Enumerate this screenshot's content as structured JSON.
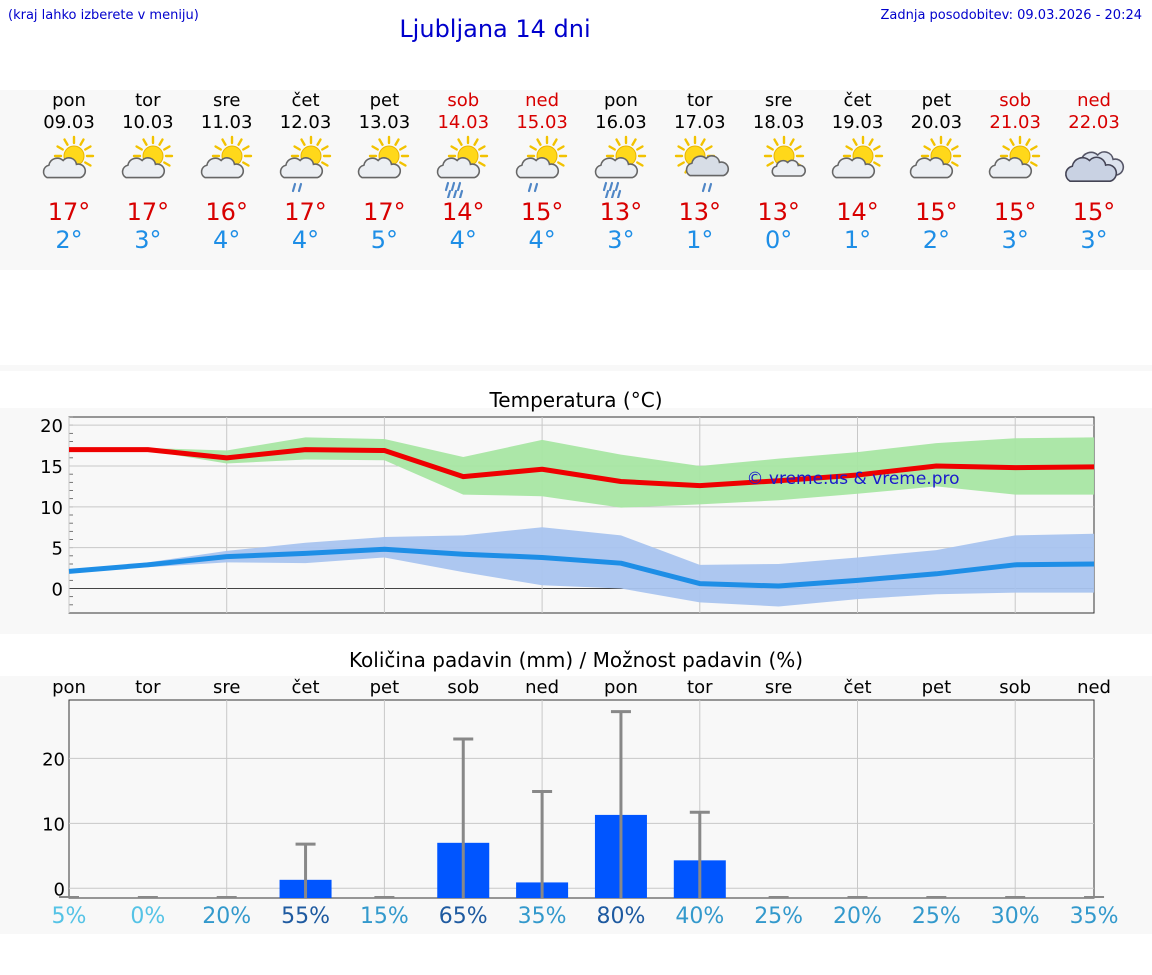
{
  "header": {
    "hint": "(kraj lahko izberete v meniju)",
    "title": "Ljubljana 14 dni",
    "updated": "Zadnja posodobitev: 09.03.2026 - 20:24"
  },
  "days": [
    {
      "name": "pon",
      "date": "09.03",
      "max": "17°",
      "min": "2°",
      "icon": "sun-cloud-icon",
      "weekend": false
    },
    {
      "name": "tor",
      "date": "10.03",
      "max": "17°",
      "min": "3°",
      "icon": "sun-cloud-icon",
      "weekend": false
    },
    {
      "name": "sre",
      "date": "11.03",
      "max": "16°",
      "min": "4°",
      "icon": "sun-cloud-icon",
      "weekend": false
    },
    {
      "name": "čet",
      "date": "12.03",
      "max": "17°",
      "min": "4°",
      "icon": "sun-cloud-drizzle-icon",
      "weekend": false
    },
    {
      "name": "pet",
      "date": "13.03",
      "max": "17°",
      "min": "5°",
      "icon": "sun-cloud-icon",
      "weekend": false
    },
    {
      "name": "sob",
      "date": "14.03",
      "max": "14°",
      "min": "4°",
      "icon": "sun-cloud-rain-icon",
      "weekend": true
    },
    {
      "name": "ned",
      "date": "15.03",
      "max": "15°",
      "min": "4°",
      "icon": "sun-cloud-drizzle-icon",
      "weekend": true
    },
    {
      "name": "pon",
      "date": "16.03",
      "max": "13°",
      "min": "3°",
      "icon": "sun-cloud-rain-icon",
      "weekend": false
    },
    {
      "name": "tor",
      "date": "17.03",
      "max": "13°",
      "min": "1°",
      "icon": "sun-grey-cloud-drizzle-icon",
      "weekend": false
    },
    {
      "name": "sre",
      "date": "18.03",
      "max": "13°",
      "min": "0°",
      "icon": "sun-small-cloud-icon",
      "weekend": false
    },
    {
      "name": "čet",
      "date": "19.03",
      "max": "14°",
      "min": "1°",
      "icon": "sun-cloud-icon",
      "weekend": false
    },
    {
      "name": "pet",
      "date": "20.03",
      "max": "15°",
      "min": "2°",
      "icon": "sun-cloud-icon",
      "weekend": false
    },
    {
      "name": "sob",
      "date": "21.03",
      "max": "15°",
      "min": "3°",
      "icon": "sun-cloud-icon",
      "weekend": true
    },
    {
      "name": "ned",
      "date": "22.03",
      "max": "15°",
      "min": "3°",
      "icon": "cloudy-icon",
      "weekend": true
    }
  ],
  "colors": {
    "max_line": "#ee0000",
    "max_band": "#a8e6a3",
    "min_line": "#1e8ee6",
    "min_band": "#a9c4ef",
    "bar": "#0055ff",
    "whisker": "#888888",
    "weekend": "#d80000"
  },
  "chart_data": [
    {
      "type": "line",
      "title": "Temperatura (°C)",
      "watermark": "© vreme.us & vreme.pro",
      "ylim": [
        -3,
        21
      ],
      "yticks": [
        0,
        5,
        10,
        15,
        20
      ],
      "series": [
        {
          "name": "max",
          "values": [
            17,
            17,
            16,
            17,
            16.9,
            13.7,
            14.6,
            13.1,
            12.6,
            13.2,
            13.9,
            15,
            14.8,
            14.9
          ],
          "band_low": [
            16.9,
            16.9,
            15.3,
            15.8,
            15.7,
            11.5,
            11.3,
            9.9,
            10.3,
            10.8,
            11.6,
            12.5,
            11.5,
            11.5
          ],
          "band_high": [
            17,
            17.2,
            16.9,
            18.5,
            18.3,
            16.1,
            18.2,
            16.4,
            15,
            15.9,
            16.7,
            17.8,
            18.4,
            18.5
          ]
        },
        {
          "name": "min",
          "values": [
            2.1,
            2.9,
            3.9,
            4.3,
            4.8,
            4.2,
            3.8,
            3.1,
            0.6,
            0.3,
            1,
            1.8,
            2.9,
            3
          ],
          "band_low": [
            2.1,
            2.6,
            3.2,
            3.1,
            3.8,
            2,
            0.4,
            0,
            -1.7,
            -2.2,
            -1.3,
            -0.7,
            -0.5,
            -0.5
          ],
          "band_high": [
            2.1,
            3.2,
            4.6,
            5.6,
            6.3,
            6.5,
            7.5,
            6.5,
            2.9,
            3,
            3.8,
            4.7,
            6.5,
            6.7
          ]
        }
      ]
    },
    {
      "type": "bar",
      "title": "Količina padavin (mm) / Možnost padavin (%)",
      "categories": [
        "pon",
        "tor",
        "sre",
        "čet",
        "pet",
        "sob",
        "ned",
        "pon",
        "tor",
        "sre",
        "čet",
        "pet",
        "sob",
        "ned"
      ],
      "ylim": [
        -1.5,
        29
      ],
      "yticks": [
        0,
        10,
        20
      ],
      "values": [
        0,
        0,
        0,
        1.3,
        0,
        7,
        0.9,
        11.3,
        4.3,
        0,
        0,
        0,
        0,
        0
      ],
      "upper": [
        0,
        0,
        0,
        6.8,
        0,
        23,
        14.9,
        27.2,
        11.7,
        0,
        0,
        0,
        0,
        0
      ],
      "probability": [
        "5%",
        "0%",
        "20%",
        "55%",
        "15%",
        "65%",
        "35%",
        "80%",
        "40%",
        "25%",
        "20%",
        "25%",
        "30%",
        "35%"
      ],
      "probability_colors": [
        "#55c3e6",
        "#55c3e6",
        "#3399cc",
        "#1e5aa0",
        "#3399cc",
        "#1e5aa0",
        "#3399cc",
        "#1e5aa0",
        "#3399cc",
        "#3399cc",
        "#3399cc",
        "#3399cc",
        "#3399cc",
        "#3399cc"
      ]
    }
  ]
}
